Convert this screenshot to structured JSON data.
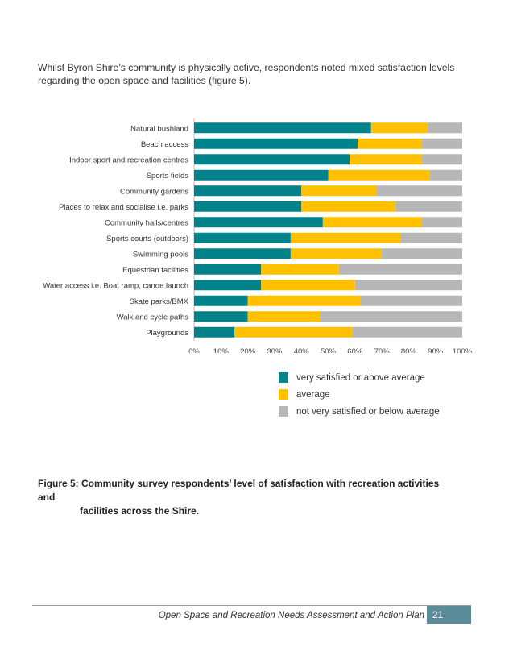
{
  "intro": "Whilst Byron Shire’s community is physically active, respondents noted mixed satisfaction levels regarding the open space and facilities (figure 5).",
  "chart_data": {
    "type": "bar",
    "orientation": "horizontal",
    "stacked": true,
    "categories": [
      "Natural bushland",
      "Beach access",
      "Indoor sport and recreation centres",
      "Sports fields",
      "Community gardens",
      "Places to relax and socialise i.e. parks",
      "Community halls/centres",
      "Sports courts (outdoors)",
      "Swimming pools",
      "Equestrian facilities",
      "Water access i.e. Boat ramp, canoe launch",
      "Skate parks/BMX",
      "Walk and cycle paths",
      "Playgrounds"
    ],
    "series": [
      {
        "name": "very satisfied or above average",
        "color": "#00828a",
        "values": [
          66,
          61,
          58,
          50,
          40,
          40,
          48,
          36,
          36,
          25,
          25,
          20,
          20,
          15
        ]
      },
      {
        "name": "average",
        "color": "#ffc000",
        "values": [
          21,
          24,
          27,
          38,
          28,
          35,
          37,
          41,
          34,
          29,
          35,
          42,
          27,
          44
        ]
      },
      {
        "name": "not very satisfied or below average",
        "color": "#b7b7b7",
        "values": [
          13,
          15,
          15,
          12,
          32,
          25,
          15,
          23,
          30,
          46,
          40,
          38,
          53,
          41
        ]
      }
    ],
    "xlim": [
      0,
      100
    ],
    "x_ticks": [
      "0%",
      "10%",
      "20%",
      "30%",
      "40%",
      "50%",
      "60%",
      "70%",
      "80%",
      "90%",
      "100%"
    ],
    "grid": false,
    "legend_position": "bottom"
  },
  "caption": {
    "line1": "Figure 5: Community survey respondents’ level of satisfaction with recreation activities and",
    "line2": "facilities across the Shire."
  },
  "footer": {
    "title": "Open Space and Recreation Needs Assessment and Action Plan",
    "page": "21",
    "page_color": "#5b8c9a"
  }
}
